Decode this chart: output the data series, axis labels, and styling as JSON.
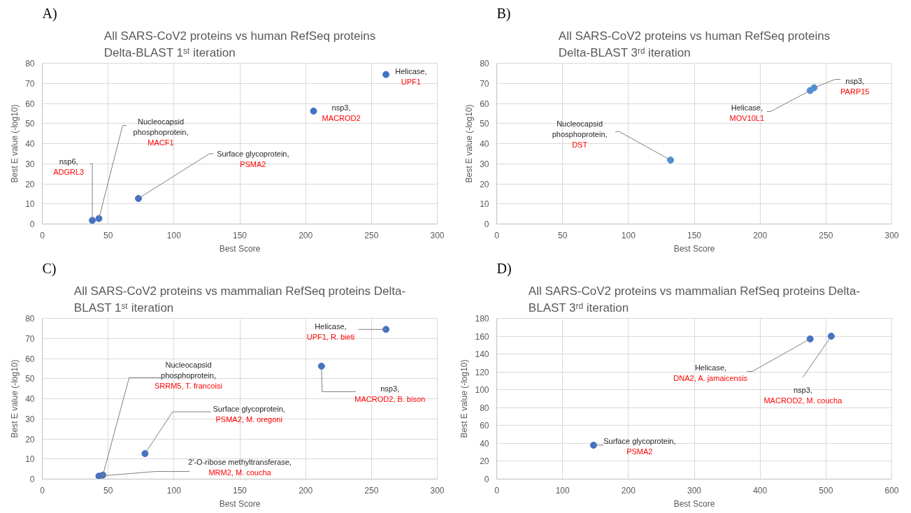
{
  "chart_data": [
    {
      "type": "scatter",
      "title": "All SARS-CoV2 proteins vs human RefSeq proteins Delta-BLAST 1ˢᵗ iteration",
      "xlabel": "Best Score",
      "ylabel": "Best E value (-log10)",
      "x": [
        38,
        43,
        73,
        206,
        261
      ],
      "series": [
        {
          "color": "#4472c4",
          "values": [
            1.8,
            2.7,
            12.7,
            56.2,
            74.4
          ]
        }
      ],
      "xlim": [
        0,
        300
      ],
      "xticks": [
        0,
        50,
        100,
        150,
        200,
        250,
        300
      ],
      "ylim": [
        0,
        80
      ],
      "yticks": [
        0,
        10,
        20,
        30,
        40,
        50,
        60,
        70,
        80
      ],
      "grid": true,
      "marker": "circle",
      "annotations": [
        "A)",
        {
          "text": "nsp6,\nADGRL3",
          "x": 38,
          "y": 1.8
        },
        {
          "text": "Nucleocapsid phosphoprotein,\nMACF1",
          "x": 43,
          "y": 2.7
        },
        {
          "text": "Surface glycoprotein,\nPSMA2",
          "x": 73,
          "y": 12.7
        },
        {
          "text": "nsp3,\nMACROD2",
          "x": 206,
          "y": 56.2
        },
        {
          "text": "Helicase,\nUPF1",
          "x": 261,
          "y": 74.4
        }
      ]
    },
    {
      "type": "scatter",
      "title": "All SARS-CoV2 proteins vs human RefSeq proteins Delta-BLAST 3ʳᵈ iteration",
      "xlabel": "Best Score",
      "ylabel": "Best E value (-log10)",
      "x": [
        132,
        238,
        241
      ],
      "series": [
        {
          "color": "#4f8fd6",
          "values": [
            31.8,
            66.4,
            67.8
          ]
        }
      ],
      "xlim": [
        0,
        300
      ],
      "xticks": [
        0,
        50,
        100,
        150,
        200,
        250,
        300
      ],
      "ylim": [
        0,
        80
      ],
      "yticks": [
        0,
        10,
        20,
        30,
        40,
        50,
        60,
        70,
        80
      ],
      "grid": true,
      "marker": "circle",
      "annotations": [
        "B)",
        {
          "text": "Nucleocapsid phosphoprotein,\nDST",
          "x": 132,
          "y": 31.8
        },
        {
          "text": "Helicase,\nMOV10L1",
          "x": 238,
          "y": 66.4
        },
        {
          "text": "nsp3,\nPARP15",
          "x": 241,
          "y": 67.8
        }
      ]
    },
    {
      "type": "scatter",
      "title": "All SARS-CoV2 proteins vs mammalian RefSeq proteins Delta-BLAST 1ˢᵗ iteration",
      "xlabel": "Best Score",
      "ylabel": "Best E value (-log10)",
      "x": [
        43,
        46,
        78,
        212,
        261
      ],
      "series": [
        {
          "color": "#4472c4",
          "values": [
            1.5,
            2.0,
            12.7,
            56.2,
            74.5
          ]
        }
      ],
      "xlim": [
        0,
        300
      ],
      "xticks": [
        0,
        50,
        100,
        150,
        200,
        250,
        300
      ],
      "ylim": [
        0,
        80
      ],
      "yticks": [
        0,
        10,
        20,
        30,
        40,
        50,
        60,
        70,
        80
      ],
      "grid": true,
      "marker": "circle",
      "annotations": [
        "C)",
        {
          "text": "2'-O-ribose methyltransferase,\nMRM2, M. coucha",
          "x": 43,
          "y": 1.5
        },
        {
          "text": "Nucleocapsid phosphoprotein,\nSRRM5, T. francoisi",
          "x": 46,
          "y": 2.0
        },
        {
          "text": "Surface glycoprotein,\nPSMA2, M. oregoni",
          "x": 78,
          "y": 12.7
        },
        {
          "text": "nsp3,\nMACROD2, B. bison",
          "x": 212,
          "y": 56.2
        },
        {
          "text": "Helicase,\nUPF1, R. bieti",
          "x": 261,
          "y": 74.5
        }
      ]
    },
    {
      "type": "scatter",
      "title": "All SARS-CoV2 proteins vs mammalian RefSeq proteins Delta-BLAST 3ʳᵈ iteration",
      "xlabel": "Best Score",
      "ylabel": "Best E value (-log10)",
      "x": [
        147,
        476,
        508
      ],
      "series": [
        {
          "color": "#4472c4",
          "values": [
            38,
            157,
            160
          ]
        }
      ],
      "xlim": [
        0,
        600
      ],
      "xticks": [
        0,
        100,
        200,
        300,
        400,
        500,
        600
      ],
      "ylim": [
        0,
        180
      ],
      "yticks": [
        0,
        20,
        40,
        60,
        80,
        100,
        120,
        140,
        160,
        180
      ],
      "grid": true,
      "marker": "circle",
      "annotations": [
        "D)",
        {
          "text": "Surface glycoprotein,\nPSMA2",
          "x": 147,
          "y": 38
        },
        {
          "text": "Helicase,\nDNA2, A. jamaicensis",
          "x": 476,
          "y": 157
        },
        {
          "text": "nsp3,\nMACROD2, M. coucha",
          "x": 508,
          "y": 160
        }
      ]
    }
  ]
}
